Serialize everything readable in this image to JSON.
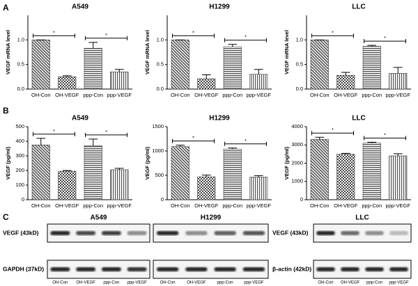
{
  "panel_labels": [
    "A",
    "B",
    "C"
  ],
  "chart_data": [
    {
      "type": "bar",
      "title": "A549",
      "ylabel": "VEGF mRNA level",
      "categories": [
        "OH-Con",
        "OH-VEGF",
        "ppp-Con",
        "ppp-VEGF"
      ],
      "values": [
        1.0,
        0.25,
        0.83,
        0.35
      ],
      "errors": [
        0.0,
        0.02,
        0.12,
        0.05
      ],
      "ylim": [
        0,
        1.5
      ],
      "yticks": [
        {
          "value": 0,
          "label": "0.0"
        },
        {
          "value": 0.5,
          "label": "0.5"
        },
        {
          "value": 1,
          "label": "1.0"
        }
      ],
      "annotations": [
        "*",
        "*"
      ]
    },
    {
      "type": "bar",
      "title": "H1299",
      "ylabel": "VEGF mRNA level",
      "categories": [
        "OH-Con",
        "OH-VEGF",
        "ppp-Con",
        "ppp-VEGF"
      ],
      "values": [
        1.0,
        0.21,
        0.86,
        0.3
      ],
      "errors": [
        0.0,
        0.08,
        0.05,
        0.1
      ],
      "ylim": [
        0,
        1.5
      ],
      "yticks": [
        {
          "value": 0,
          "label": "0.0"
        },
        {
          "value": 0.5,
          "label": "0.5"
        },
        {
          "value": 1,
          "label": "1.0"
        }
      ],
      "annotations": [
        "*",
        "*"
      ]
    },
    {
      "type": "bar",
      "title": "LLC",
      "ylabel": "VEGF mRNA level",
      "categories": [
        "OH-Con",
        "OH-VEGF",
        "ppp-Con",
        "ppp-VEGF"
      ],
      "values": [
        1.0,
        0.28,
        0.87,
        0.32
      ],
      "errors": [
        0.0,
        0.06,
        0.02,
        0.12
      ],
      "ylim": [
        0,
        1.5
      ],
      "yticks": [
        {
          "value": 0,
          "label": "0.0"
        },
        {
          "value": 0.5,
          "label": "0.5"
        },
        {
          "value": 1,
          "label": "1.0"
        }
      ],
      "annotations": [
        "*",
        "*"
      ]
    },
    {
      "type": "bar",
      "title": "A549",
      "ylabel": "VEGF (pg/ml)",
      "categories": [
        "OH-Con",
        "OH-VEGF",
        "ppp-Con",
        "ppp-VEGF"
      ],
      "values": [
        375,
        195,
        370,
        205
      ],
      "errors": [
        45,
        5,
        45,
        10
      ],
      "ylim": [
        0,
        500
      ],
      "yticks": [
        0,
        100,
        200,
        300,
        400,
        500
      ],
      "annotations": [
        "*",
        "*"
      ]
    },
    {
      "type": "bar",
      "title": "H1299",
      "ylabel": "VEGF (pg/ml)",
      "categories": [
        "OH-Con",
        "OH-VEGF",
        "ppp-Con",
        "ppp-VEGF"
      ],
      "values": [
        1090,
        470,
        1040,
        465
      ],
      "errors": [
        30,
        35,
        20,
        30
      ],
      "ylim": [
        0,
        1500
      ],
      "yticks": [
        0,
        500,
        1000,
        1500
      ],
      "annotations": [
        "*",
        "*"
      ]
    },
    {
      "type": "bar",
      "title": "LLC",
      "ylabel": "VEGF (pg/ml)",
      "categories": [
        "OH-Con",
        "OH-VEGF",
        "ppp-Con",
        "ppp-VEGF"
      ],
      "values": [
        3300,
        2490,
        3100,
        2400
      ],
      "errors": [
        120,
        50,
        50,
        120
      ],
      "ylim": [
        0,
        4000
      ],
      "yticks": [
        0,
        1000,
        2000,
        3000,
        4000
      ],
      "annotations": [
        "*",
        "*"
      ]
    }
  ],
  "blot": {
    "groups": [
      {
        "title": "A549",
        "lanes": [
          "OH-Con",
          "OH-VEGF",
          "ppp-Con",
          "ppp-VEGF"
        ]
      },
      {
        "title": "H1299",
        "lanes": [
          "OH-Con",
          "OH-VEGF",
          "ppp-Con",
          "ppp-VEGF"
        ]
      },
      {
        "title": "LLC",
        "lanes": [
          "OH-Con",
          "OH-VEGF",
          "ppp-Con",
          "ppp-VEGF"
        ]
      }
    ],
    "left_labels": [
      "VEGF (43kD)",
      "GAPDH (37kD)"
    ],
    "right_labels": [
      "VEGF (43kD)",
      "β-actin (42kD)"
    ]
  }
}
